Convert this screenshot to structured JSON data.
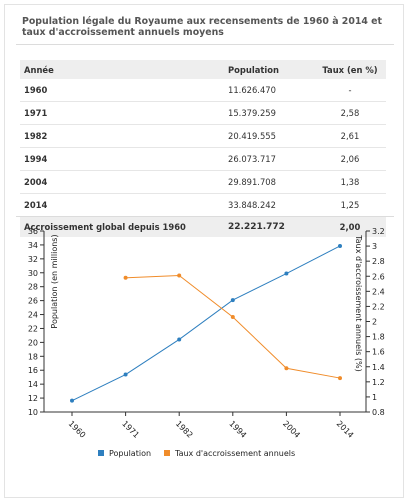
{
  "title": "Population légale du Royaume aux recensements de 1960 à 2014 et taux d'accroissement annuels moyens",
  "table": {
    "headers": [
      "Année",
      "Population",
      "Taux (en %)"
    ],
    "rows": [
      {
        "year": "1960",
        "population": "11.626.470",
        "rate": "-"
      },
      {
        "year": "1971",
        "population": "15.379.259",
        "rate": "2,58"
      },
      {
        "year": "1982",
        "population": "20.419.555",
        "rate": "2,61"
      },
      {
        "year": "1994",
        "population": "26.073.717",
        "rate": "2,06"
      },
      {
        "year": "2004",
        "population": "29.891.708",
        "rate": "1,38"
      },
      {
        "year": "2014",
        "population": "33.848.242",
        "rate": "1,25"
      }
    ],
    "total": {
      "label": "Accroissement global depuis 1960",
      "population": "22.221.772",
      "rate": "2,00"
    }
  },
  "chart_data": {
    "type": "line",
    "categories": [
      "1960",
      "1971",
      "1982",
      "1994",
      "2004",
      "2014"
    ],
    "series": [
      {
        "name": "Population",
        "axis": "left",
        "color": "#2e7fbf",
        "values": [
          11.62647,
          15.379259,
          20.419555,
          26.073717,
          29.891708,
          33.848242
        ]
      },
      {
        "name": "Taux d'accroissement annuels",
        "axis": "right",
        "color": "#f08c2a",
        "values": [
          null,
          2.58,
          2.61,
          2.06,
          1.38,
          1.25
        ]
      }
    ],
    "ylabel": "Population (en millions)",
    "y2label": "Taux d'accroissement annuels (%)",
    "ylim": [
      10,
      36
    ],
    "yticks": [
      10,
      12,
      14,
      16,
      18,
      20,
      22,
      24,
      26,
      28,
      30,
      32,
      34,
      36
    ],
    "y2lim": [
      0.8,
      3.2
    ],
    "y2ticks": [
      "0.8",
      "1",
      "1.2",
      "1.4",
      "1.6",
      "1.8",
      "2",
      "2.2",
      "2.4",
      "2.6",
      "2.8",
      "3",
      "3.2"
    ],
    "legend": "bottom",
    "grid": false
  }
}
